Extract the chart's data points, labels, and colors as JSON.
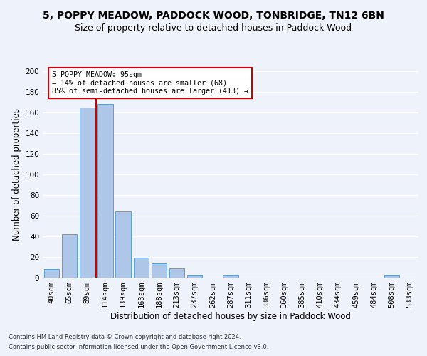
{
  "title": "5, POPPY MEADOW, PADDOCK WOOD, TONBRIDGE, TN12 6BN",
  "subtitle": "Size of property relative to detached houses in Paddock Wood",
  "xlabel": "Distribution of detached houses by size in Paddock Wood",
  "ylabel": "Number of detached properties",
  "bar_color": "#aec6e8",
  "bar_edge_color": "#5a9fd4",
  "categories": [
    "40sqm",
    "65sqm",
    "89sqm",
    "114sqm",
    "139sqm",
    "163sqm",
    "188sqm",
    "213sqm",
    "237sqm",
    "262sqm",
    "287sqm",
    "311sqm",
    "336sqm",
    "360sqm",
    "385sqm",
    "410sqm",
    "434sqm",
    "459sqm",
    "484sqm",
    "508sqm",
    "533sqm"
  ],
  "values": [
    8,
    42,
    165,
    168,
    64,
    19,
    14,
    9,
    3,
    0,
    3,
    0,
    0,
    0,
    0,
    0,
    0,
    0,
    0,
    3,
    0
  ],
  "ylim": [
    0,
    200
  ],
  "yticks": [
    0,
    20,
    40,
    60,
    80,
    100,
    120,
    140,
    160,
    180,
    200
  ],
  "property_line_x": 2.5,
  "annotation_line1": "5 POPPY MEADOW: 95sqm",
  "annotation_line2": "← 14% of detached houses are smaller (68)",
  "annotation_line3": "85% of semi-detached houses are larger (413) →",
  "footer_line1": "Contains HM Land Registry data © Crown copyright and database right 2024.",
  "footer_line2": "Contains public sector information licensed under the Open Government Licence v3.0.",
  "background_color": "#eef2fa",
  "grid_color": "#ffffff",
  "annotation_box_edge": "#cc0000",
  "property_line_color": "#cc0000",
  "title_fontsize": 10,
  "subtitle_fontsize": 9,
  "axis_label_fontsize": 8.5,
  "tick_fontsize": 7.5,
  "footer_fontsize": 6.0
}
